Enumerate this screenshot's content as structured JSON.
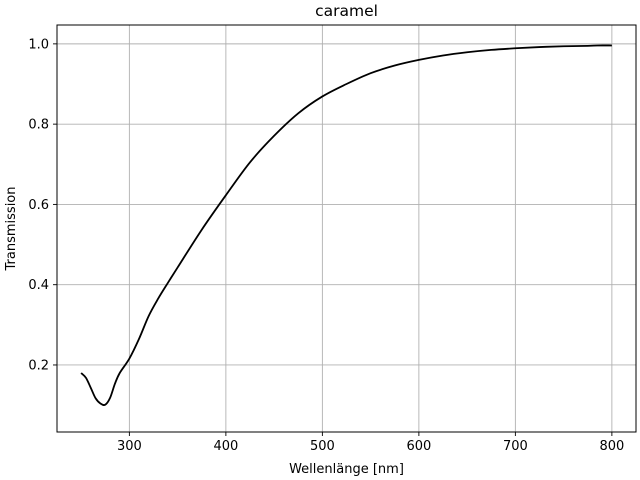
{
  "chart_data": {
    "type": "line",
    "title": "caramel",
    "xlabel": "Wellenlänge [nm]",
    "ylabel": "Transmission",
    "xlim": [
      225,
      825
    ],
    "ylim": [
      0.033,
      1.047
    ],
    "xticks": [
      300,
      400,
      500,
      600,
      700,
      800
    ],
    "yticks": [
      0.2,
      0.4,
      0.6,
      0.8,
      1.0
    ],
    "xtick_labels": [
      "300",
      "400",
      "500",
      "600",
      "700",
      "800"
    ],
    "ytick_labels": [
      "0.2",
      "0.4",
      "0.6",
      "0.8",
      "1.0"
    ],
    "grid": true,
    "line_color": "#000000",
    "grid_color": "#b0b0b0",
    "series": [
      {
        "x": [
          250,
          255,
          260,
          265,
          270,
          275,
          280,
          285,
          290,
          300,
          310,
          320,
          330,
          340,
          350,
          375,
          400,
          425,
          450,
          475,
          500,
          525,
          550,
          575,
          600,
          625,
          650,
          675,
          700,
          725,
          750,
          775,
          785,
          800
        ],
        "y": [
          0.18,
          0.168,
          0.143,
          0.117,
          0.104,
          0.101,
          0.118,
          0.153,
          0.18,
          0.216,
          0.265,
          0.322,
          0.366,
          0.405,
          0.443,
          0.537,
          0.623,
          0.705,
          0.771,
          0.827,
          0.869,
          0.9,
          0.927,
          0.946,
          0.96,
          0.971,
          0.979,
          0.985,
          0.989,
          0.992,
          0.994,
          0.995,
          0.996,
          0.996
        ]
      }
    ]
  }
}
